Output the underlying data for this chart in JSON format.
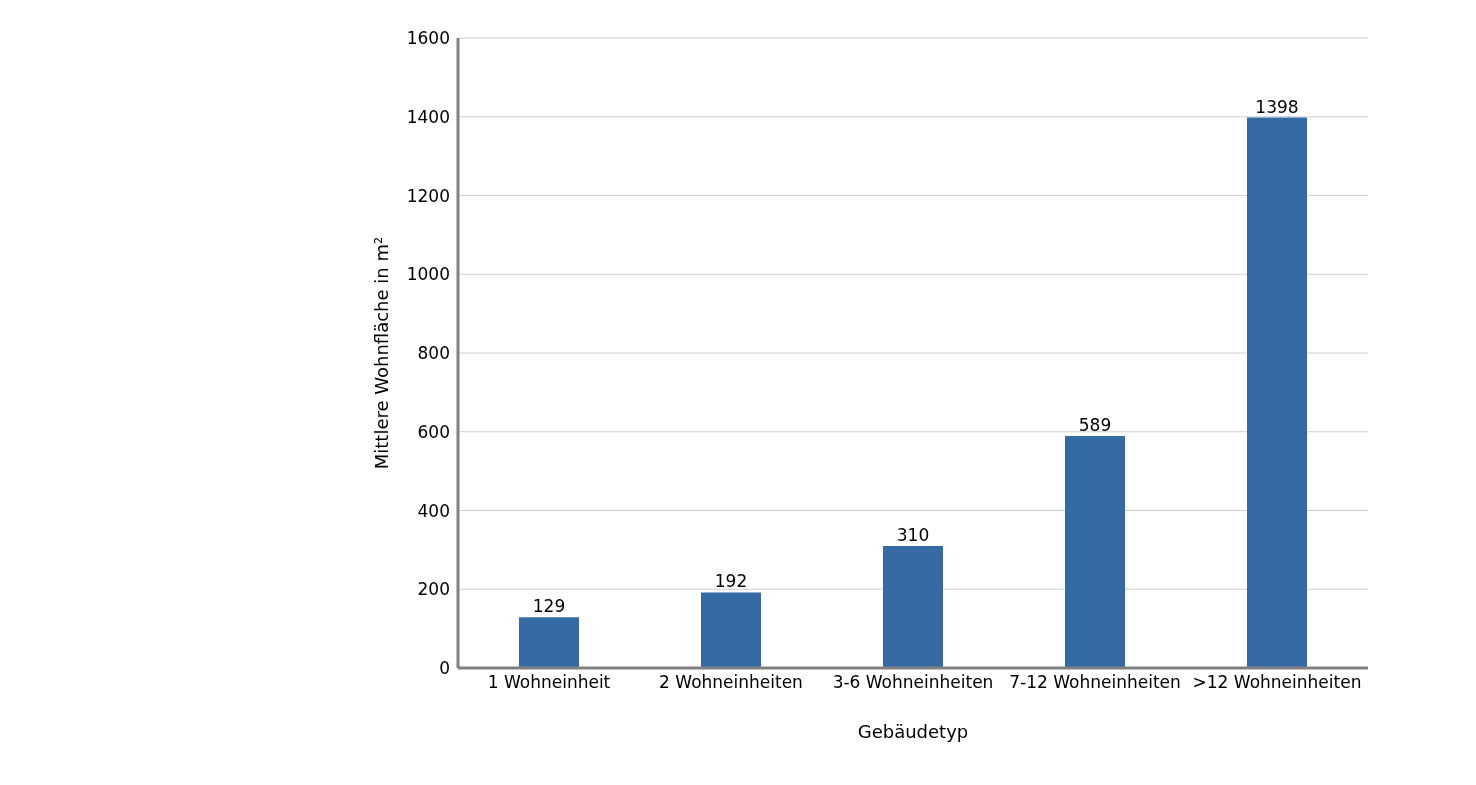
{
  "chart_data": {
    "type": "bar",
    "xlabel": "Gebäudetyp",
    "ylabel": "Mittlere Wohnfläche in m²",
    "categories": [
      "1 Wohneinheit",
      "2 Wohneinheiten",
      "3-6 Wohneinheiten",
      "7-12 Wohneinheiten",
      ">12 Wohneinheiten"
    ],
    "values": [
      129,
      192,
      310,
      589,
      1398
    ],
    "color": "#366aa5",
    "ylim": [
      0,
      1600
    ],
    "yticks": [
      0,
      200,
      400,
      600,
      800,
      1000,
      1200,
      1400,
      1600
    ],
    "grid": "y",
    "data_labels": true
  }
}
